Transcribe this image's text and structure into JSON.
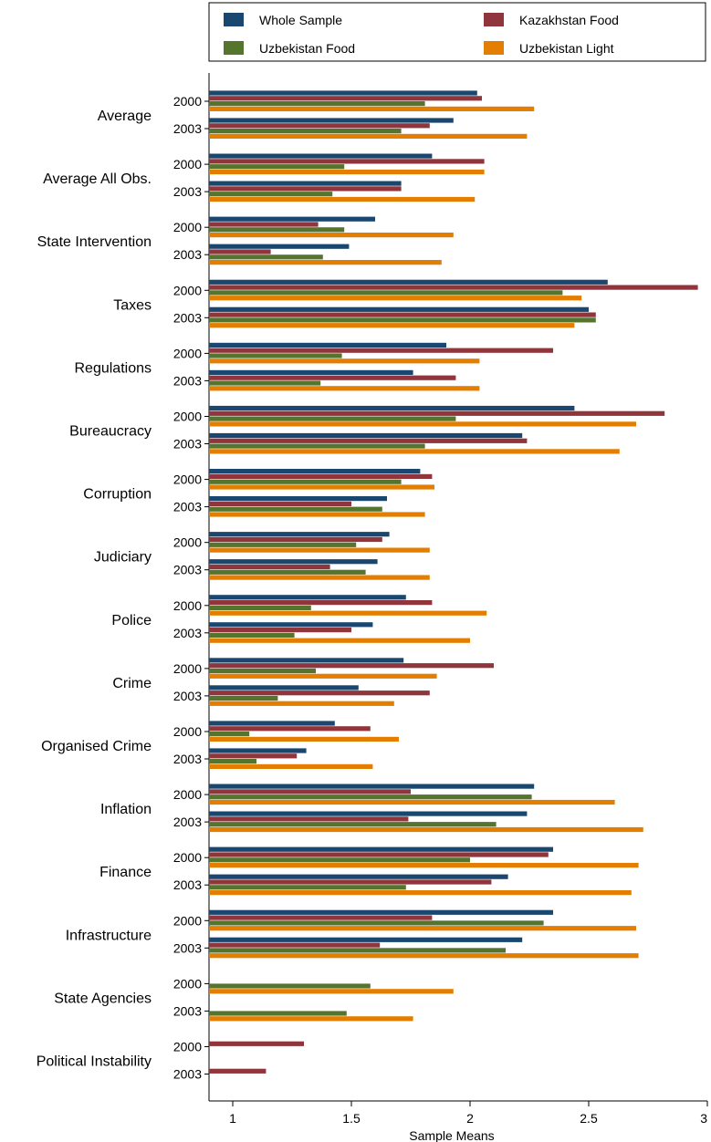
{
  "chart_data": {
    "type": "bar",
    "orientation": "horizontal",
    "xlabel": "Sample Means",
    "xlim": [
      0.9,
      3.0
    ],
    "xticks": [
      1,
      1.5,
      2,
      2.5,
      3
    ],
    "grid": false,
    "legend_position": "top",
    "categories": [
      "Average",
      "Average All Obs.",
      "State Intervention",
      "Taxes",
      "Regulations",
      "Bureaucracy",
      "Corruption",
      "Judiciary",
      "Police",
      "Crime",
      "Organised Crime",
      "Inflation",
      "Finance",
      "Infrastructure",
      "State Agencies",
      "Political Instability"
    ],
    "years": [
      "2000",
      "2003"
    ],
    "series": [
      {
        "name": "Whole Sample",
        "color": "#1a476f",
        "values": [
          [
            2.03,
            1.93
          ],
          [
            1.84,
            1.71
          ],
          [
            1.6,
            1.49
          ],
          [
            2.58,
            2.5
          ],
          [
            1.9,
            1.76
          ],
          [
            2.44,
            2.22
          ],
          [
            1.79,
            1.65
          ],
          [
            1.66,
            1.61
          ],
          [
            1.73,
            1.59
          ],
          [
            1.72,
            1.53
          ],
          [
            1.43,
            1.31
          ],
          [
            2.27,
            2.24
          ],
          [
            2.35,
            2.16
          ],
          [
            2.35,
            2.22
          ],
          [
            null,
            null
          ],
          [
            null,
            null
          ]
        ]
      },
      {
        "name": "Kazakhstan Food",
        "color": "#90353b",
        "values": [
          [
            2.05,
            1.83
          ],
          [
            2.06,
            1.71
          ],
          [
            1.36,
            1.16
          ],
          [
            2.96,
            2.53
          ],
          [
            2.35,
            1.94
          ],
          [
            2.82,
            2.24
          ],
          [
            1.84,
            1.5
          ],
          [
            1.63,
            1.41
          ],
          [
            1.84,
            1.5
          ],
          [
            2.1,
            1.83
          ],
          [
            1.58,
            1.27
          ],
          [
            1.75,
            1.74
          ],
          [
            2.33,
            2.09
          ],
          [
            1.84,
            1.62
          ],
          [
            null,
            null
          ],
          [
            1.3,
            1.14
          ]
        ]
      },
      {
        "name": "Uzbekistan Food",
        "color": "#55752f",
        "values": [
          [
            1.81,
            1.71
          ],
          [
            1.47,
            1.42
          ],
          [
            1.47,
            1.38
          ],
          [
            2.39,
            2.53
          ],
          [
            1.46,
            1.37
          ],
          [
            1.94,
            1.81
          ],
          [
            1.71,
            1.63
          ],
          [
            1.52,
            1.56
          ],
          [
            1.33,
            1.26
          ],
          [
            1.35,
            1.19
          ],
          [
            1.07,
            1.1
          ],
          [
            2.26,
            2.11
          ],
          [
            2.0,
            1.73
          ],
          [
            2.31,
            2.15
          ],
          [
            1.58,
            1.48
          ],
          [
            null,
            null
          ]
        ]
      },
      {
        "name": "Uzbekistan Light",
        "color": "#e37e00",
        "values": [
          [
            2.27,
            2.24
          ],
          [
            2.06,
            2.02
          ],
          [
            1.93,
            1.88
          ],
          [
            2.47,
            2.44
          ],
          [
            2.04,
            2.04
          ],
          [
            2.7,
            2.63
          ],
          [
            1.85,
            1.81
          ],
          [
            1.83,
            1.83
          ],
          [
            2.07,
            2.0
          ],
          [
            1.86,
            1.68
          ],
          [
            1.7,
            1.59
          ],
          [
            2.61,
            2.73
          ],
          [
            2.71,
            2.68
          ],
          [
            2.7,
            2.71
          ],
          [
            1.93,
            1.76
          ],
          [
            null,
            null
          ]
        ]
      }
    ]
  }
}
